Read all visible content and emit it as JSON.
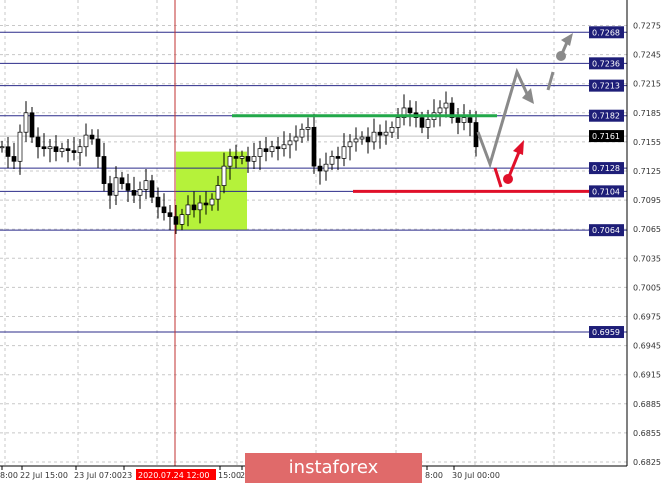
{
  "chart_data": {
    "type": "candlestick",
    "y_ticks": [
      "0.7275",
      "0.7245",
      "0.7215",
      "0.7185",
      "0.7155",
      "0.7125",
      "0.7095",
      "0.7065",
      "0.7035",
      "0.7005",
      "0.6975",
      "0.6945",
      "0.6915",
      "0.6885",
      "0.6855",
      "0.6825"
    ],
    "ylim": [
      0.682,
      0.729
    ],
    "levels": [
      {
        "price": "0.7268",
        "color": "#2b2b8a"
      },
      {
        "price": "0.7236",
        "color": "#2b2b8a"
      },
      {
        "price": "0.7213",
        "color": "#2b2b8a"
      },
      {
        "price": "0.7182",
        "color": "#2b2b8a"
      },
      {
        "price": "0.7128",
        "color": "#2b2b8a"
      },
      {
        "price": "0.7104",
        "color": "#2b2b8a"
      },
      {
        "price": "0.7064",
        "color": "#2b2b8a"
      },
      {
        "price": "0.6959",
        "color": "#2b2b8a"
      }
    ],
    "current_price": "0.7161",
    "x_labels": [
      "8:00",
      "22 Jul 15:00",
      "23 Jul 07:00",
      "23",
      "15:00",
      "2",
      "8:00",
      "30 Jul 00:00"
    ],
    "cursor_label": "2020.07.24 12:00",
    "closes": [
      0.715,
      0.714,
      0.7135,
      0.7165,
      0.7185,
      0.716,
      0.715,
      0.7148,
      0.715,
      0.7145,
      0.7148,
      0.7146,
      0.7144,
      0.715,
      0.7162,
      0.7158,
      0.714,
      0.7112,
      0.71,
      0.7118,
      0.7112,
      0.7105,
      0.71,
      0.7106,
      0.7115,
      0.7098,
      0.7088,
      0.7082,
      0.7078,
      0.707,
      0.708,
      0.709,
      0.7085,
      0.7092,
      0.709,
      0.7096,
      0.711,
      0.713,
      0.714,
      0.7138,
      0.714,
      0.7135,
      0.714,
      0.7148,
      0.7145,
      0.715,
      0.7148,
      0.7152,
      0.7156,
      0.716,
      0.7168,
      0.717,
      0.713,
      0.7125,
      0.7132,
      0.714,
      0.7138,
      0.715,
      0.7155,
      0.7158,
      0.716,
      0.7155,
      0.7165,
      0.7162,
      0.7165,
      0.717,
      0.718,
      0.719,
      0.7185,
      0.718,
      0.717,
      0.7178,
      0.7185,
      0.719,
      0.7195,
      0.718,
      0.7175,
      0.718,
      0.7175,
      0.715
    ],
    "resistance": {
      "price": 0.7182,
      "color": "#22a84a"
    },
    "support": {
      "price": 0.7104,
      "color": "#e0102a"
    },
    "highlight_zone": {
      "from": 0.7064,
      "to": 0.7145,
      "color": "#b5f23a"
    },
    "grid": true
  },
  "watermark": "instaforex",
  "colors": {
    "level": "#2b2b8a",
    "cursor": "#e0102a",
    "scenario_main": "#8a8a8a",
    "scenario_alt": "#e0102a"
  }
}
